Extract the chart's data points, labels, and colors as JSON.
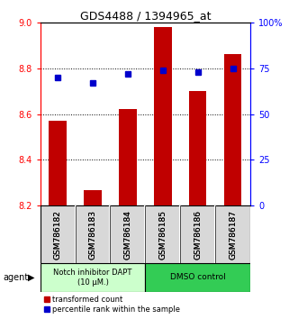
{
  "title": "GDS4488 / 1394965_at",
  "samples": [
    "GSM786182",
    "GSM786183",
    "GSM786184",
    "GSM786185",
    "GSM786186",
    "GSM786187"
  ],
  "bar_values": [
    8.57,
    8.27,
    8.62,
    8.98,
    8.7,
    8.86
  ],
  "bar_base": 8.2,
  "percentile_values": [
    70,
    67,
    72,
    74,
    73,
    75
  ],
  "bar_color": "#c00000",
  "dot_color": "#0000cc",
  "ylim_left": [
    8.2,
    9.0
  ],
  "ylim_right": [
    0,
    100
  ],
  "yticks_left": [
    8.2,
    8.4,
    8.6,
    8.8,
    9.0
  ],
  "yticks_right": [
    0,
    25,
    50,
    75,
    100
  ],
  "ytick_labels_right": [
    "0",
    "25",
    "50",
    "75",
    "100%"
  ],
  "grid_values": [
    8.4,
    8.6,
    8.8
  ],
  "group1_label": "Notch inhibitor DAPT\n(10 μM.)",
  "group2_label": "DMSO control",
  "group1_color": "#ccffcc",
  "group2_color": "#33cc55",
  "agent_label": "agent",
  "legend1_label": "transformed count",
  "legend2_label": "percentile rank within the sample",
  "bar_width": 0.5,
  "label_box_color": "#d8d8d8",
  "background_color": "#ffffff"
}
